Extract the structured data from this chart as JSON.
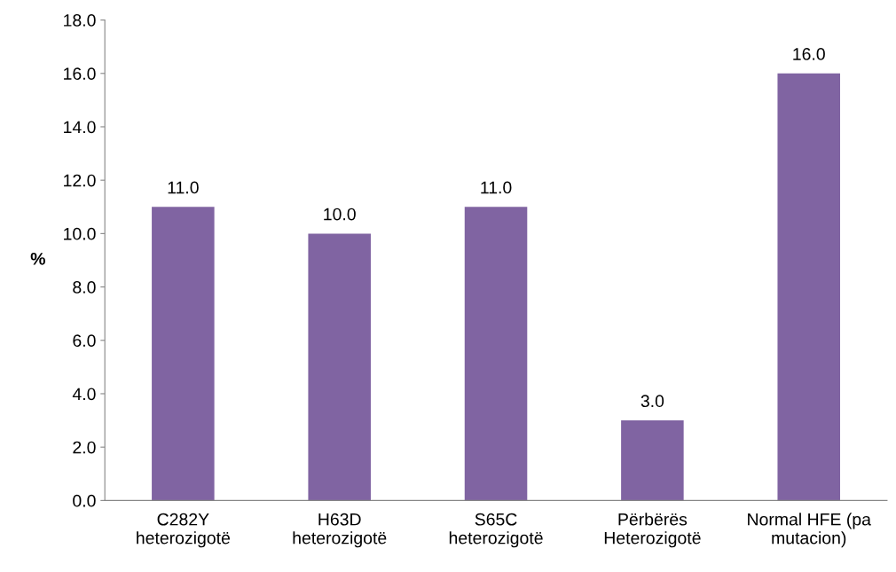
{
  "chart_data": {
    "type": "bar",
    "ylabel": "%",
    "categories": [
      "C282Y\nheterozigotë",
      "H63D\nheterozigotë",
      "S65C\nheterozigotë",
      "Përbërës\nHeterozigotë",
      "Normal HFE (pa\nmutacion)"
    ],
    "values": [
      11.0,
      10.0,
      11.0,
      3.0,
      16.0
    ],
    "value_labels": [
      "11.0",
      "10.0",
      "11.0",
      "3.0",
      "16.0"
    ],
    "color": "#8064a2",
    "ylim": [
      0,
      18
    ],
    "yticks": [
      {
        "value": 0,
        "label": "0.0"
      },
      {
        "value": 2,
        "label": "2.0"
      },
      {
        "value": 4,
        "label": "4.0"
      },
      {
        "value": 6,
        "label": "6.0"
      },
      {
        "value": 8,
        "label": "8.0"
      },
      {
        "value": 10,
        "label": "10.0"
      },
      {
        "value": 12,
        "label": "12.0"
      },
      {
        "value": 14,
        "label": "14.0"
      },
      {
        "value": 16,
        "label": "16.0"
      },
      {
        "value": 18,
        "label": "18.0"
      }
    ],
    "grid": false,
    "legend": false
  }
}
